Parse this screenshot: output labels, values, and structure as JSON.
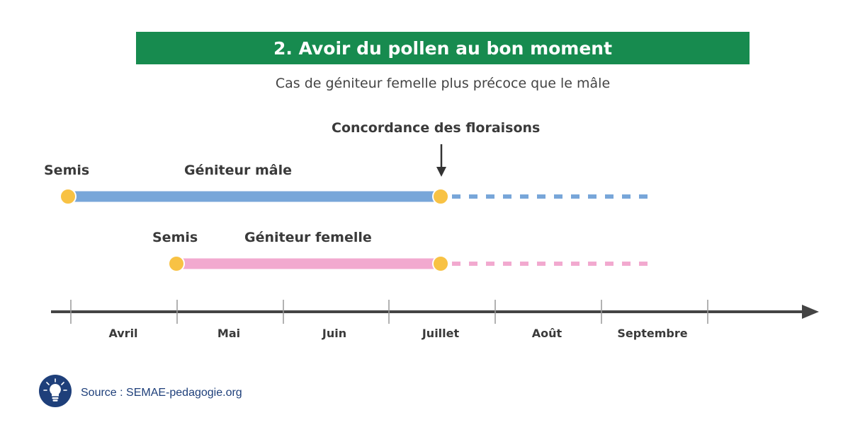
{
  "title": "2. Avoir du pollen au bon moment",
  "subtitle": "Cas de géniteur femelle plus précoce que le mâle",
  "annotation": "Concordance des floraisons",
  "rows": {
    "male": {
      "start_label": "Semis",
      "name": "Géniteur mâle",
      "color": "#78a6d9"
    },
    "female": {
      "start_label": "Semis",
      "name": "Géniteur femelle",
      "color": "#f2a9cf"
    }
  },
  "marker_color": "#f8c244",
  "axis": {
    "months": [
      "Avril",
      "Mai",
      "Juin",
      "Juillet",
      "Août",
      "Septembre"
    ],
    "color": "#444444"
  },
  "source": {
    "text": "Source : SEMAE-pedagogie.org",
    "logo_icon": "lightbulb-icon",
    "logo_color": "#1e3f7a"
  }
}
